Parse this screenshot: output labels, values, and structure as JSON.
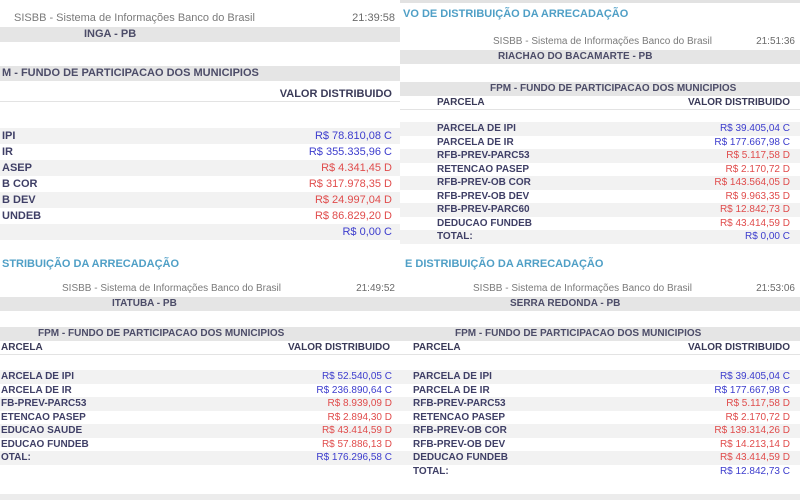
{
  "colors": {
    "title_teal": "#4f9fc6",
    "credit_blue": "#3c3ccd",
    "debit_red": "#e04c4c"
  },
  "screens": [
    {
      "app_header": "SISBB - Sistema de Informações Banco do Brasil",
      "time": "21:39:58",
      "municipality": "INGA - PB",
      "section_title": "M - FUNDO DE PARTICIPACAO DOS MUNICIPIOS",
      "parcela_header": "",
      "value_header": "VALOR DISTRIBUIDO",
      "rows": [
        {
          "label": "IPI",
          "value": "R$ 78.810,08 C",
          "type": "credit"
        },
        {
          "label": "IR",
          "value": "R$ 355.335,96 C",
          "type": "credit"
        },
        {
          "label": "ASEP",
          "value": "R$ 4.341,45 D",
          "type": "debit"
        },
        {
          "label": "B COR",
          "value": "R$ 317.978,35 D",
          "type": "debit"
        },
        {
          "label": "B DEV",
          "value": "R$ 24.997,04 D",
          "type": "debit"
        },
        {
          "label": "UNDEB",
          "value": "R$ 86.829,20 D",
          "type": "debit"
        },
        {
          "label": "",
          "value": "R$ 0,00 C",
          "type": "credit"
        }
      ]
    },
    {
      "report_title": "VO DE DISTRIBUIÇÃO DA ARRECADAÇÃO",
      "app_header": "SISBB - Sistema de Informações Banco do Brasil",
      "time": "21:51:36",
      "municipality": "RIACHAO DO BACAMARTE - PB",
      "section_title": "FPM - FUNDO DE PARTICIPACAO DOS MUNICIPIOS",
      "parcela_header": "PARCELA",
      "value_header": "VALOR DISTRIBUIDO",
      "rows": [
        {
          "label": "PARCELA DE IPI",
          "value": "R$ 39.405,04 C",
          "type": "credit"
        },
        {
          "label": "PARCELA DE IR",
          "value": "R$ 177.667,98 C",
          "type": "credit"
        },
        {
          "label": "RFB-PREV-PARC53",
          "value": "R$ 5.117,58 D",
          "type": "debit"
        },
        {
          "label": "RETENCAO PASEP",
          "value": "R$ 2.170,72 D",
          "type": "debit"
        },
        {
          "label": "RFB-PREV-OB COR",
          "value": "R$ 143.564,05 D",
          "type": "debit"
        },
        {
          "label": "RFB-PREV-OB DEV",
          "value": "R$ 9.963,35 D",
          "type": "debit"
        },
        {
          "label": "RFB-PREV-PARC60",
          "value": "R$ 12.842,73 D",
          "type": "debit"
        },
        {
          "label": "DEDUCAO FUNDEB",
          "value": "R$ 43.414,59 D",
          "type": "debit"
        },
        {
          "label": "TOTAL:",
          "value": "R$ 0,00 C",
          "type": "credit"
        }
      ]
    },
    {
      "report_title": "STRIBUIÇÃO DA ARRECADAÇÃO",
      "app_header": "SISBB - Sistema de Informações Banco do Brasil",
      "time": "21:49:52",
      "municipality": "ITATUBA - PB",
      "section_title": "FPM - FUNDO DE PARTICIPACAO DOS MUNICIPIOS",
      "parcela_header": "ARCELA",
      "value_header": "VALOR DISTRIBUIDO",
      "rows": [
        {
          "label": "ARCELA DE IPI",
          "value": "R$ 52.540,05 C",
          "type": "credit"
        },
        {
          "label": "ARCELA DE IR",
          "value": "R$ 236.890,64 C",
          "type": "credit"
        },
        {
          "label": "FB-PREV-PARC53",
          "value": "R$ 8.939,09 D",
          "type": "debit"
        },
        {
          "label": "ETENCAO PASEP",
          "value": "R$ 2.894,30 D",
          "type": "debit"
        },
        {
          "label": "EDUCAO SAUDE",
          "value": "R$ 43.414,59 D",
          "type": "debit"
        },
        {
          "label": "EDUCAO FUNDEB",
          "value": "R$ 57.886,13 D",
          "type": "debit"
        },
        {
          "label": "OTAL:",
          "value": "R$ 176.296,58 C",
          "type": "credit"
        }
      ]
    },
    {
      "report_title": "E DISTRIBUIÇÃO DA ARRECADAÇÃO",
      "app_header": "SISBB - Sistema de Informações Banco do Brasil",
      "time": "21:53:06",
      "municipality": "SERRA REDONDA - PB",
      "section_title": "FPM - FUNDO DE PARTICIPACAO DOS MUNICIPIOS",
      "parcela_header": "PARCELA",
      "value_header": "VALOR DISTRIBUIDO",
      "rows": [
        {
          "label": "PARCELA DE IPI",
          "value": "R$ 39.405,04 C",
          "type": "credit"
        },
        {
          "label": "PARCELA DE IR",
          "value": "R$ 177.667,98 C",
          "type": "credit"
        },
        {
          "label": "RFB-PREV-PARC53",
          "value": "R$ 5.117,58 D",
          "type": "debit"
        },
        {
          "label": "RETENCAO PASEP",
          "value": "R$ 2.170,72 D",
          "type": "debit"
        },
        {
          "label": "RFB-PREV-OB COR",
          "value": "R$ 139.314,26 D",
          "type": "debit"
        },
        {
          "label": "RFB-PREV-OB DEV",
          "value": "R$ 14.213,14 D",
          "type": "debit"
        },
        {
          "label": "DEDUCAO FUNDEB",
          "value": "R$ 43.414,59 D",
          "type": "debit"
        },
        {
          "label": "TOTAL:",
          "value": "R$ 12.842,73 C",
          "type": "credit"
        }
      ]
    }
  ]
}
